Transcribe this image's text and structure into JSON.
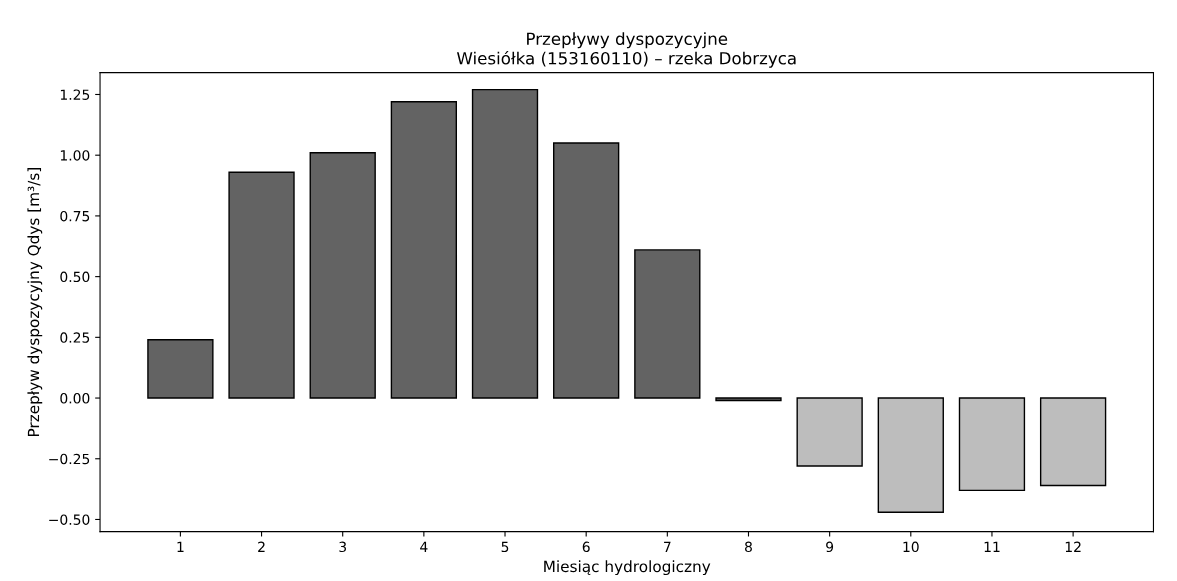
{
  "chart_data": {
    "type": "bar",
    "title": "Przepływy dyspozycyjne",
    "subtitle": "Wiesiółka (153160110) – rzeka Dobrzyca",
    "xlabel": "Miesiąc hydrologiczny",
    "ylabel": "Przepływ dyspozycyjny Qdys [m³/s]",
    "categories": [
      "1",
      "2",
      "3",
      "4",
      "5",
      "6",
      "7",
      "8",
      "9",
      "10",
      "11",
      "12"
    ],
    "values": [
      0.24,
      0.93,
      1.01,
      1.22,
      1.27,
      1.05,
      0.61,
      -0.01,
      -0.28,
      -0.47,
      -0.38,
      -0.36
    ],
    "colors": [
      "#636363",
      "#636363",
      "#636363",
      "#636363",
      "#636363",
      "#636363",
      "#636363",
      "#636363",
      "#bdbdbd",
      "#bdbdbd",
      "#bdbdbd",
      "#bdbdbd"
    ],
    "ylim": [
      -0.55,
      1.34
    ],
    "yticks": [
      {
        "value": -0.5,
        "label": "−0.50"
      },
      {
        "value": -0.25,
        "label": "−0.25"
      },
      {
        "value": 0,
        "label": "0.00"
      },
      {
        "value": 0.25,
        "label": "0.25"
      },
      {
        "value": 0.5,
        "label": "0.50"
      },
      {
        "value": 0.75,
        "label": "0.75"
      },
      {
        "value": 1.0,
        "label": "1.00"
      },
      {
        "value": 1.25,
        "label": "1.25"
      }
    ],
    "grid": false
  }
}
